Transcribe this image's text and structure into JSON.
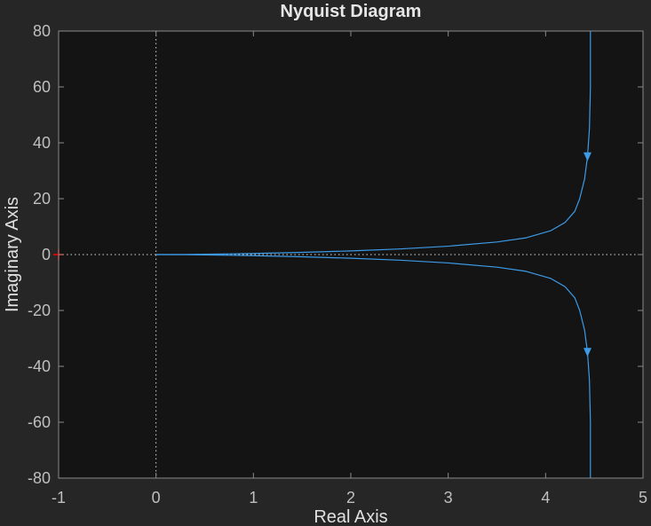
{
  "chart_data": {
    "type": "line",
    "title": "Nyquist Diagram",
    "xlabel": "Real Axis",
    "ylabel": "Imaginary Axis",
    "xlim": [
      -1,
      5
    ],
    "ylim": [
      -80,
      80
    ],
    "xticks": [
      -1,
      0,
      1,
      2,
      3,
      4,
      5
    ],
    "yticks": [
      -80,
      -60,
      -40,
      -20,
      0,
      20,
      40,
      60,
      80
    ],
    "xtick_labels": [
      "-1",
      "0",
      "1",
      "2",
      "3",
      "4",
      "5"
    ],
    "ytick_labels": [
      "-80",
      "-60",
      "-40",
      "-20",
      "0",
      "20",
      "40",
      "60",
      "80"
    ],
    "grid": false,
    "zero_lines": "dotted",
    "critical_point": {
      "x": -1,
      "y": 0,
      "marker": "+",
      "color": "#ff0000"
    },
    "series": [
      {
        "color": "#3c9ae6",
        "x": [
          4.46,
          4.46,
          4.45,
          4.43,
          4.4,
          4.35,
          4.3,
          4.2,
          4.05,
          3.8,
          3.5,
          3.0,
          2.5,
          2.0,
          1.5,
          1.0,
          0.68,
          0.3,
          0.0
        ],
        "y": [
          80,
          60,
          45,
          35,
          27,
          20,
          15.5,
          11.5,
          8.5,
          6.0,
          4.5,
          3.0,
          2.0,
          1.3,
          0.8,
          0.4,
          0.2,
          0.05,
          0.0
        ],
        "arrow_at": {
          "x": 4.43,
          "y": 35,
          "direction": "down"
        }
      },
      {
        "color": "#3c9ae6",
        "x": [
          0.0,
          0.3,
          0.68,
          1.0,
          1.5,
          2.0,
          2.5,
          3.0,
          3.5,
          3.8,
          4.05,
          4.2,
          4.3,
          4.35,
          4.4,
          4.43,
          4.45,
          4.46,
          4.46
        ],
        "y": [
          0.0,
          -0.05,
          -0.2,
          -0.4,
          -0.8,
          -1.3,
          -2.0,
          -3.0,
          -4.5,
          -6.0,
          -8.5,
          -11.5,
          -15.5,
          -20,
          -27,
          -35,
          -45,
          -60,
          -80
        ],
        "arrow_at": {
          "x": 4.43,
          "y": -35,
          "direction": "down"
        }
      }
    ],
    "colors": {
      "figure_bg": "#262626",
      "axes_bg": "#141414",
      "axes_edge": "#8a8a8a",
      "zero_line": "#d9d9d9"
    }
  }
}
